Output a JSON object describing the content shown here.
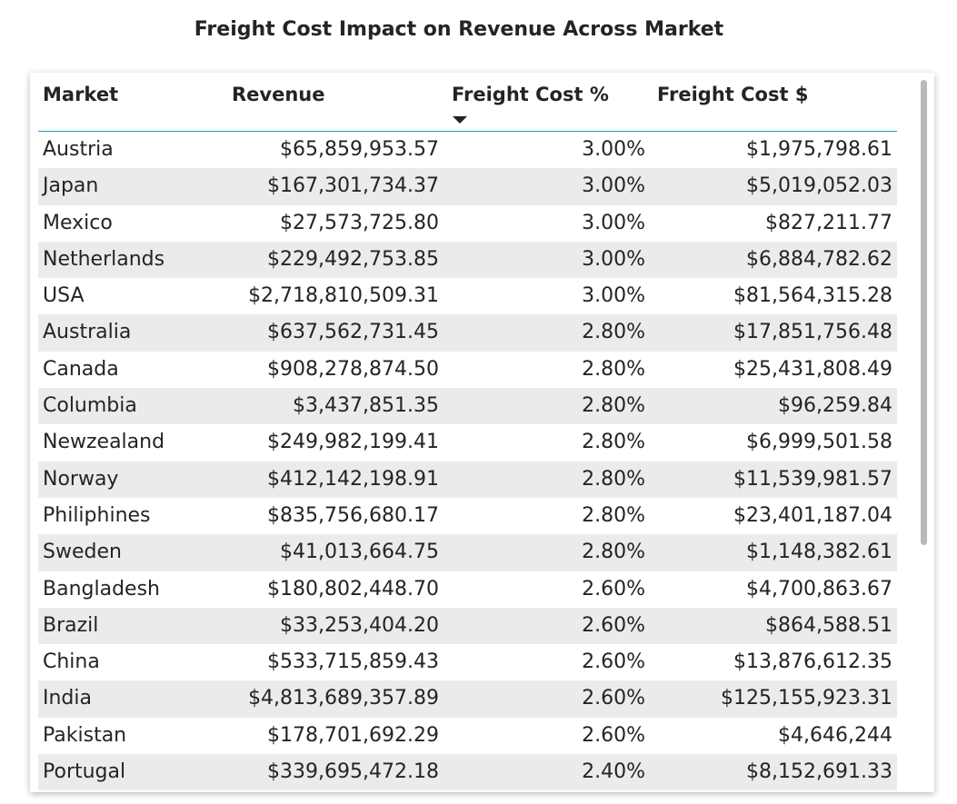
{
  "title": "Freight Cost Impact on Revenue Across Market",
  "table": {
    "columns": {
      "market": "Market",
      "revenue": "Revenue",
      "freight_pct": "Freight Cost %",
      "freight_cost": "Freight Cost $"
    },
    "sort": {
      "column": "freight_pct",
      "direction": "descending"
    },
    "rows": [
      {
        "market": "Austria",
        "revenue": "$65,859,953.57",
        "freight_pct": "3.00%",
        "freight_cost": "$1,975,798.61"
      },
      {
        "market": "Japan",
        "revenue": "$167,301,734.37",
        "freight_pct": "3.00%",
        "freight_cost": "$5,019,052.03"
      },
      {
        "market": "Mexico",
        "revenue": "$27,573,725.80",
        "freight_pct": "3.00%",
        "freight_cost": "$827,211.77"
      },
      {
        "market": "Netherlands",
        "revenue": "$229,492,753.85",
        "freight_pct": "3.00%",
        "freight_cost": "$6,884,782.62"
      },
      {
        "market": "USA",
        "revenue": "$2,718,810,509.31",
        "freight_pct": "3.00%",
        "freight_cost": "$81,564,315.28"
      },
      {
        "market": "Australia",
        "revenue": "$637,562,731.45",
        "freight_pct": "2.80%",
        "freight_cost": "$17,851,756.48"
      },
      {
        "market": "Canada",
        "revenue": "$908,278,874.50",
        "freight_pct": "2.80%",
        "freight_cost": "$25,431,808.49"
      },
      {
        "market": "Columbia",
        "revenue": "$3,437,851.35",
        "freight_pct": "2.80%",
        "freight_cost": "$96,259.84"
      },
      {
        "market": "Newzealand",
        "revenue": "$249,982,199.41",
        "freight_pct": "2.80%",
        "freight_cost": "$6,999,501.58"
      },
      {
        "market": "Norway",
        "revenue": "$412,142,198.91",
        "freight_pct": "2.80%",
        "freight_cost": "$11,539,981.57"
      },
      {
        "market": "Philiphines",
        "revenue": "$835,756,680.17",
        "freight_pct": "2.80%",
        "freight_cost": "$23,401,187.04"
      },
      {
        "market": "Sweden",
        "revenue": "$41,013,664.75",
        "freight_pct": "2.80%",
        "freight_cost": "$1,148,382.61"
      },
      {
        "market": "Bangladesh",
        "revenue": "$180,802,448.70",
        "freight_pct": "2.60%",
        "freight_cost": "$4,700,863.67"
      },
      {
        "market": "Brazil",
        "revenue": "$33,253,404.20",
        "freight_pct": "2.60%",
        "freight_cost": "$864,588.51"
      },
      {
        "market": "China",
        "revenue": "$533,715,859.43",
        "freight_pct": "2.60%",
        "freight_cost": "$13,876,612.35"
      },
      {
        "market": "India",
        "revenue": "$4,813,689,357.89",
        "freight_pct": "2.60%",
        "freight_cost": "$125,155,923.31"
      },
      {
        "market": "Pakistan",
        "revenue": "$178,701,692.29",
        "freight_pct": "2.60%",
        "freight_cost": "$4,646,244"
      },
      {
        "market": "Portugal",
        "revenue": "$339,695,472.18",
        "freight_pct": "2.40%",
        "freight_cost": "$8,152,691.33"
      }
    ]
  },
  "colors": {
    "text": "#252423",
    "header_rule": "#1aa3ae",
    "alt_row": "#ebebeb",
    "scrollbar": "#b9b9b9"
  }
}
